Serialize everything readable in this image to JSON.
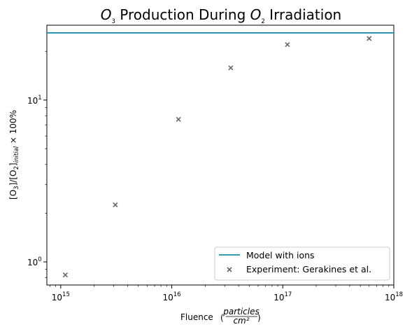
{
  "chart_data": {
    "type": "scatter",
    "title_parts": {
      "a": "O",
      "a_sub": "3",
      "b": " Production During ",
      "c": "O",
      "c_sub": "2",
      "d": " Irradiation"
    },
    "xlabel": "Fluence",
    "xlabel_frac": {
      "num": "particles",
      "den": "cm²"
    },
    "ylabel_parts": {
      "a": "[O",
      "a_sub": "3",
      "b": "]/[O",
      "b_sub": "2",
      "c": "]",
      "c_sub": "initial",
      "d": " × 100%"
    },
    "x_scale": "log",
    "y_scale": "log",
    "xlim": [
      750000000000000.0,
      1e+18
    ],
    "ylim": [
      0.72,
      29
    ],
    "x_ticks": [
      {
        "value": 1000000000000000.0,
        "base": "10",
        "exp": "15"
      },
      {
        "value": 1e+16,
        "base": "10",
        "exp": "16"
      },
      {
        "value": 1e+17,
        "base": "10",
        "exp": "17"
      },
      {
        "value": 1e+18,
        "base": "10",
        "exp": "18"
      }
    ],
    "y_ticks": [
      {
        "value": 1,
        "base": "10",
        "exp": "0"
      },
      {
        "value": 10,
        "base": "10",
        "exp": "1"
      }
    ],
    "grid": false,
    "legend_position": "lower-right",
    "series": [
      {
        "name": "Model with ions",
        "kind": "hline",
        "y": 26,
        "color": "#1a8fa8"
      },
      {
        "name": "Experiment: Gerakines et al.",
        "kind": "scatter",
        "marker": "x",
        "color": "#666666",
        "points": [
          {
            "x": 1100000000000000.0,
            "y": 0.83
          },
          {
            "x": 3100000000000000.0,
            "y": 2.25
          },
          {
            "x": 1.15e+16,
            "y": 7.6
          },
          {
            "x": 3.4e+16,
            "y": 15.8
          },
          {
            "x": 1.1e+17,
            "y": 22.0
          },
          {
            "x": 6e+17,
            "y": 24.0
          }
        ]
      }
    ]
  }
}
